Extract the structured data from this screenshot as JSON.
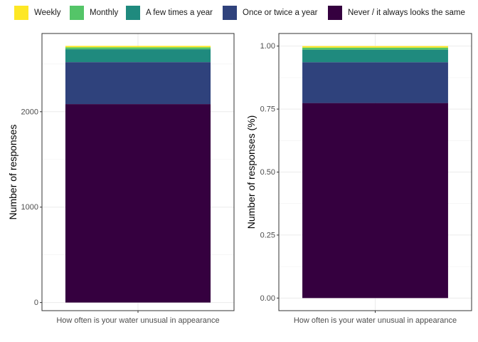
{
  "legend": {
    "items": [
      {
        "label": "Weekly",
        "color": "#FDE725"
      },
      {
        "label": "Monthly",
        "color": "#54C568"
      },
      {
        "label": "A few times a year",
        "color": "#1F8A7E"
      },
      {
        "label": "Once or twice a year",
        "color": "#2F427C"
      },
      {
        "label": "Never / it always looks the same",
        "color": "#35003F"
      }
    ]
  },
  "chart_data": [
    {
      "type": "bar",
      "stacked": true,
      "categories": [
        "How often is your water unusual in appearance"
      ],
      "series": [
        {
          "name": "Never / it always looks the same",
          "values": [
            2080
          ]
        },
        {
          "name": "Once or twice a year",
          "values": [
            440
          ]
        },
        {
          "name": "A few times a year",
          "values": [
            135
          ]
        },
        {
          "name": "Monthly",
          "values": [
            20
          ]
        },
        {
          "name": "Weekly",
          "values": [
            15
          ]
        }
      ],
      "xlabel": "",
      "ylabel": "Number of responses",
      "ylim": [
        -85,
        2820
      ],
      "yticks": [
        0,
        1000,
        2000
      ],
      "ytick_labels": [
        "0",
        "1000",
        "2000"
      ],
      "grid": true,
      "legend": "top"
    },
    {
      "type": "bar",
      "stacked": true,
      "categories": [
        "How often is your water unusual in appearance"
      ],
      "series": [
        {
          "name": "Never / it always looks the same",
          "values": [
            0.774
          ]
        },
        {
          "name": "Once or twice a year",
          "values": [
            0.162
          ]
        },
        {
          "name": "A few times a year",
          "values": [
            0.05
          ]
        },
        {
          "name": "Monthly",
          "values": [
            0.008
          ]
        },
        {
          "name": "Weekly",
          "values": [
            0.006
          ]
        }
      ],
      "xlabel": "",
      "ylabel": "Number of responses (%)",
      "ylim": [
        -0.05,
        1.05
      ],
      "yticks": [
        0,
        0.25,
        0.5,
        0.75,
        1
      ],
      "ytick_labels": [
        "0.00",
        "0.25",
        "0.50",
        "0.75",
        "1.00"
      ],
      "grid": true,
      "legend": "top"
    }
  ]
}
